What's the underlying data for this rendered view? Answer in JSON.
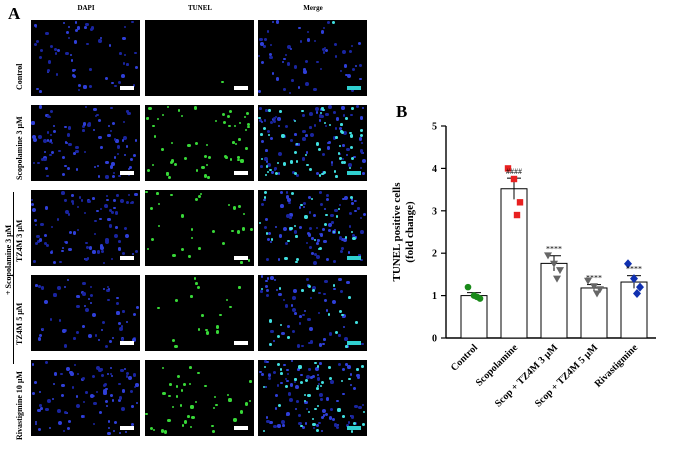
{
  "figure": {
    "panel_a_letter": "A",
    "panel_b_letter": "B",
    "columns": [
      "DAPI",
      "TUNEL",
      "Merge"
    ],
    "rows": [
      {
        "label": "Control"
      },
      {
        "label": "Scopolamine  3 μM"
      },
      {
        "label": "TZ4M 3 μM"
      },
      {
        "label": "TZ4M 5 μM"
      },
      {
        "label": "Rivastigmine  10 μM"
      }
    ],
    "group_label": "+ Scopolamine 3 μM"
  },
  "chart_data": {
    "type": "bar",
    "ylabel_line1": "TUNEL positive cells",
    "ylabel_line2": "(fold change)",
    "ylim": [
      0,
      5
    ],
    "yticks": [
      "0",
      "1",
      "2",
      "3",
      "4",
      "5"
    ],
    "categories": [
      "Control",
      "Scopolamine",
      "Scop + TZ4M 3 μM",
      "Scop + TZ4M 5 μM",
      "Rivastigmine"
    ],
    "values": [
      1.0,
      3.52,
      1.76,
      1.18,
      1.32
    ],
    "errors": [
      0.07,
      0.25,
      0.18,
      0.08,
      0.15
    ],
    "points": [
      [
        1.2,
        1.0,
        0.93,
        0.97
      ],
      [
        4.0,
        3.75,
        3.2,
        2.9
      ],
      [
        1.95,
        1.75,
        1.6,
        1.4
      ],
      [
        1.35,
        1.22,
        1.15,
        1.05
      ],
      [
        1.75,
        1.4,
        1.2,
        1.05
      ]
    ],
    "annotations": [
      "",
      "####",
      "****",
      "****",
      "****"
    ],
    "marker_colors": [
      "#1a8a1a",
      "#e82020",
      "#666666",
      "#666666",
      "#1030b0"
    ],
    "marker_shapes": [
      "circle",
      "square",
      "triangle-down",
      "triangle-down",
      "diamond"
    ]
  }
}
